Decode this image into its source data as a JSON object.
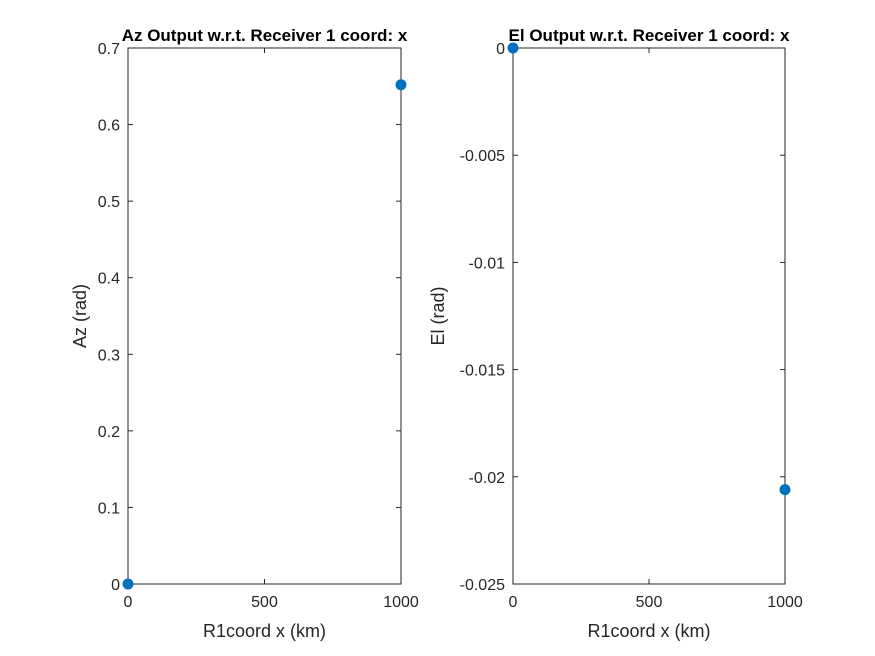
{
  "chart_data": [
    {
      "type": "scatter",
      "title": "Az Output w.r.t. Receiver 1 coord: x",
      "xlabel": "R1coord x (km)",
      "ylabel": "Az (rad)",
      "xlim": [
        0,
        1000
      ],
      "ylim": [
        0,
        0.7
      ],
      "xticks": [
        0,
        500,
        1000
      ],
      "xtick_labels": [
        "0",
        "500",
        "1000"
      ],
      "yticks": [
        0,
        0.1,
        0.2,
        0.3,
        0.4,
        0.5,
        0.6,
        0.7
      ],
      "ytick_labels": [
        "0",
        "0.1",
        "0.2",
        "0.3",
        "0.4",
        "0.5",
        "0.6",
        "0.7"
      ],
      "color": "#0072BD",
      "points": [
        {
          "x": 0,
          "y": 0
        },
        {
          "x": 1000,
          "y": 0.652
        }
      ]
    },
    {
      "type": "scatter",
      "title": "El Output w.r.t. Receiver 1 coord: x",
      "xlabel": "R1coord x (km)",
      "ylabel": "El (rad)",
      "xlim": [
        0,
        1000
      ],
      "ylim": [
        -0.025,
        0
      ],
      "xticks": [
        0,
        500,
        1000
      ],
      "xtick_labels": [
        "0",
        "500",
        "1000"
      ],
      "yticks": [
        -0.025,
        -0.02,
        -0.015,
        -0.01,
        -0.005,
        0
      ],
      "ytick_labels": [
        "-0.025",
        "-0.02",
        "-0.015",
        "-0.01",
        "-0.005",
        "0"
      ],
      "color": "#0072BD",
      "points": [
        {
          "x": 0,
          "y": 0
        },
        {
          "x": 1000,
          "y": -0.0206
        }
      ]
    }
  ]
}
